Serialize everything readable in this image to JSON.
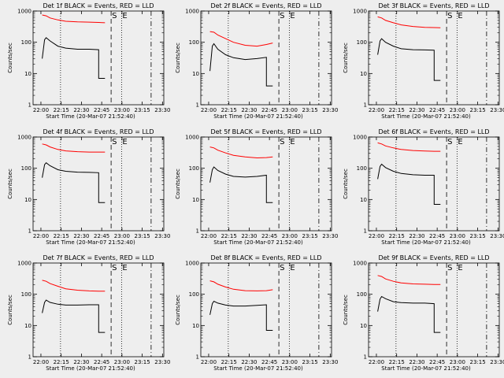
{
  "chart_data": [
    {
      "type": "line",
      "title": "Det 1f BLACK = Events, RED = LLD",
      "xlabel": "Start Time (20-Mar-07 21:52:40)",
      "ylabel": "Counts/sec",
      "xticks": [
        "22:00",
        "22:15",
        "22:30",
        "22:45",
        "23:00",
        "23:15",
        "23:30"
      ],
      "yticks": [
        "1",
        "10",
        "100",
        "1000"
      ],
      "y_scale": "log",
      "ylim": [
        1,
        1000
      ],
      "markers": [
        "S",
        "E"
      ],
      "series": [
        {
          "color": "#000000",
          "x": [
            0,
            0.03,
            0.05,
            0.1,
            0.2,
            0.3,
            0.45,
            0.6,
            0.72,
            0.8
          ],
          "values": [
            30,
            120,
            140,
            110,
            75,
            65,
            60,
            60,
            58,
            7
          ]
        },
        {
          "color": "#ff0000",
          "x": [
            0,
            0.05,
            0.1,
            0.2,
            0.3,
            0.45,
            0.6,
            0.72,
            0.8
          ],
          "values": [
            750,
            700,
            600,
            520,
            470,
            450,
            440,
            430,
            420
          ]
        }
      ]
    },
    {
      "type": "line",
      "title": "Det 2f BLACK = Events, RED = LLD",
      "xlabel": "Start Time (20-Mar-07 21:52:40)",
      "ylabel": "Counts/sec",
      "xticks": [
        "22:00",
        "22:15",
        "22:30",
        "22:45",
        "23:00",
        "23:15",
        "23:30"
      ],
      "yticks": [
        "1",
        "10",
        "100",
        "1000"
      ],
      "y_scale": "log",
      "ylim": [
        1,
        1000
      ],
      "markers": [
        "S",
        "E"
      ],
      "series": [
        {
          "color": "#000000",
          "x": [
            0,
            0.03,
            0.05,
            0.1,
            0.2,
            0.3,
            0.45,
            0.6,
            0.72,
            0.8
          ],
          "values": [
            12,
            75,
            90,
            60,
            40,
            32,
            28,
            30,
            33,
            4
          ]
        },
        {
          "color": "#ff0000",
          "x": [
            0,
            0.05,
            0.1,
            0.2,
            0.3,
            0.45,
            0.6,
            0.72,
            0.8
          ],
          "values": [
            220,
            210,
            170,
            130,
            100,
            80,
            75,
            85,
            95
          ]
        }
      ]
    },
    {
      "type": "line",
      "title": "Det 3f BLACK = Events, RED = LLD",
      "xlabel": "Start Time (20-Mar-07 21:52:40)",
      "ylabel": "Counts/sec",
      "xticks": [
        "22:00",
        "22:15",
        "22:30",
        "22:45",
        "23:00",
        "23:15",
        "23:30"
      ],
      "yticks": [
        "1",
        "10",
        "100",
        "1000"
      ],
      "y_scale": "log",
      "ylim": [
        1,
        1000
      ],
      "markers": [
        "S",
        "E"
      ],
      "series": [
        {
          "color": "#000000",
          "x": [
            0,
            0.03,
            0.05,
            0.1,
            0.2,
            0.3,
            0.45,
            0.6,
            0.72,
            0.8
          ],
          "values": [
            40,
            110,
            130,
            100,
            75,
            62,
            58,
            57,
            56,
            6
          ]
        },
        {
          "color": "#ff0000",
          "x": [
            0,
            0.05,
            0.1,
            0.2,
            0.3,
            0.45,
            0.6,
            0.72,
            0.8
          ],
          "values": [
            650,
            600,
            500,
            420,
            360,
            320,
            300,
            295,
            290
          ]
        }
      ]
    },
    {
      "type": "line",
      "title": "Det 4f BLACK = Events, RED = LLD",
      "xlabel": "Start Time (20-Mar-07 21:52:40)",
      "ylabel": "Counts/sec",
      "xticks": [
        "22:00",
        "22:15",
        "22:30",
        "22:45",
        "23:00",
        "23:15",
        "23:30"
      ],
      "yticks": [
        "1",
        "10",
        "100",
        "1000"
      ],
      "y_scale": "log",
      "ylim": [
        1,
        1000
      ],
      "markers": [
        "S",
        "E"
      ],
      "series": [
        {
          "color": "#000000",
          "x": [
            0,
            0.03,
            0.05,
            0.1,
            0.2,
            0.3,
            0.45,
            0.6,
            0.72,
            0.8
          ],
          "values": [
            50,
            130,
            150,
            120,
            90,
            80,
            75,
            74,
            72,
            8
          ]
        },
        {
          "color": "#ff0000",
          "x": [
            0,
            0.05,
            0.1,
            0.2,
            0.3,
            0.45,
            0.6,
            0.72,
            0.8
          ],
          "values": [
            600,
            560,
            480,
            400,
            360,
            340,
            330,
            330,
            330
          ]
        }
      ]
    },
    {
      "type": "line",
      "title": "Det 5f BLACK = Events, RED = LLD",
      "xlabel": "Start Time (20-Mar-07 21:52:40)",
      "ylabel": "Counts/sec",
      "xticks": [
        "22:00",
        "22:15",
        "22:30",
        "22:45",
        "23:00",
        "23:15",
        "23:30"
      ],
      "yticks": [
        "1",
        "10",
        "100",
        "1000"
      ],
      "y_scale": "log",
      "ylim": [
        1,
        1000
      ],
      "markers": [
        "S",
        "E"
      ],
      "series": [
        {
          "color": "#000000",
          "x": [
            0,
            0.03,
            0.05,
            0.1,
            0.2,
            0.3,
            0.45,
            0.6,
            0.72,
            0.8
          ],
          "values": [
            35,
            90,
            110,
            85,
            65,
            55,
            52,
            55,
            60,
            8
          ]
        },
        {
          "color": "#ff0000",
          "x": [
            0,
            0.05,
            0.1,
            0.2,
            0.3,
            0.45,
            0.6,
            0.72,
            0.8
          ],
          "values": [
            480,
            450,
            380,
            310,
            260,
            230,
            215,
            220,
            230
          ]
        }
      ]
    },
    {
      "type": "line",
      "title": "Det 6f BLACK = Events, RED = LLD",
      "xlabel": "Start Time (20-Mar-07 21:52:40)",
      "ylabel": "Counts/sec",
      "xticks": [
        "22:00",
        "22:15",
        "22:30",
        "22:45",
        "23:00",
        "23:15",
        "23:30"
      ],
      "yticks": [
        "1",
        "10",
        "100",
        "1000"
      ],
      "y_scale": "log",
      "ylim": [
        1,
        1000
      ],
      "markers": [
        "S",
        "E"
      ],
      "series": [
        {
          "color": "#000000",
          "x": [
            0,
            0.03,
            0.05,
            0.1,
            0.2,
            0.3,
            0.45,
            0.6,
            0.72,
            0.8
          ],
          "values": [
            45,
            115,
            135,
            105,
            80,
            68,
            62,
            60,
            60,
            7
          ]
        },
        {
          "color": "#ff0000",
          "x": [
            0,
            0.05,
            0.1,
            0.2,
            0.3,
            0.45,
            0.6,
            0.72,
            0.8
          ],
          "values": [
            650,
            600,
            520,
            450,
            400,
            370,
            355,
            350,
            350
          ]
        }
      ]
    },
    {
      "type": "line",
      "title": "Det 7f BLACK = Events, RED = LLD",
      "xlabel": "Start Time (20-Mar-07 21:52:40)",
      "ylabel": "Counts/sec",
      "xticks": [
        "22:00",
        "22:15",
        "22:30",
        "22:45",
        "23:00",
        "23:15",
        "23:30"
      ],
      "yticks": [
        "1",
        "10",
        "100",
        "1000"
      ],
      "y_scale": "log",
      "ylim": [
        1,
        1000
      ],
      "markers": [
        "S",
        "E"
      ],
      "series": [
        {
          "color": "#000000",
          "x": [
            0,
            0.03,
            0.05,
            0.1,
            0.2,
            0.3,
            0.45,
            0.6,
            0.72,
            0.8
          ],
          "values": [
            25,
            55,
            65,
            55,
            48,
            45,
            45,
            46,
            46,
            6
          ]
        },
        {
          "color": "#ff0000",
          "x": [
            0,
            0.05,
            0.1,
            0.2,
            0.3,
            0.45,
            0.6,
            0.72,
            0.8
          ],
          "values": [
            280,
            260,
            220,
            180,
            150,
            135,
            128,
            125,
            125
          ]
        }
      ]
    },
    {
      "type": "line",
      "title": "Det 8f BLACK = Events, RED = LLD",
      "xlabel": "Start Time (20-Mar-07 21:52:40)",
      "ylabel": "Counts/sec",
      "xticks": [
        "22:00",
        "22:15",
        "22:30",
        "22:45",
        "23:00",
        "23:15",
        "23:30"
      ],
      "yticks": [
        "1",
        "10",
        "100",
        "1000"
      ],
      "y_scale": "log",
      "ylim": [
        1,
        1000
      ],
      "markers": [
        "S",
        "E"
      ],
      "series": [
        {
          "color": "#000000",
          "x": [
            0,
            0.03,
            0.05,
            0.1,
            0.2,
            0.3,
            0.45,
            0.6,
            0.72,
            0.8
          ],
          "values": [
            22,
            50,
            60,
            52,
            45,
            42,
            42,
            44,
            46,
            7
          ]
        },
        {
          "color": "#ff0000",
          "x": [
            0,
            0.05,
            0.1,
            0.2,
            0.3,
            0.45,
            0.6,
            0.72,
            0.8
          ],
          "values": [
            270,
            250,
            210,
            170,
            145,
            130,
            128,
            130,
            140
          ]
        }
      ]
    },
    {
      "type": "line",
      "title": "Det 9f BLACK = Events, RED = LLD",
      "xlabel": "Start Time (20-Mar-07 21:52:40)",
      "ylabel": "Counts/sec",
      "xticks": [
        "22:00",
        "22:15",
        "22:30",
        "22:45",
        "23:00",
        "23:15",
        "23:30"
      ],
      "yticks": [
        "1",
        "10",
        "100",
        "1000"
      ],
      "y_scale": "log",
      "ylim": [
        1,
        1000
      ],
      "markers": [
        "S",
        "E"
      ],
      "series": [
        {
          "color": "#000000",
          "x": [
            0,
            0.03,
            0.05,
            0.1,
            0.2,
            0.3,
            0.45,
            0.6,
            0.72,
            0.8
          ],
          "values": [
            28,
            70,
            85,
            72,
            58,
            54,
            52,
            52,
            50,
            6
          ]
        },
        {
          "color": "#ff0000",
          "x": [
            0,
            0.05,
            0.1,
            0.2,
            0.3,
            0.45,
            0.6,
            0.72,
            0.8
          ],
          "values": [
            400,
            370,
            310,
            260,
            230,
            215,
            210,
            205,
            205
          ]
        }
      ]
    }
  ]
}
